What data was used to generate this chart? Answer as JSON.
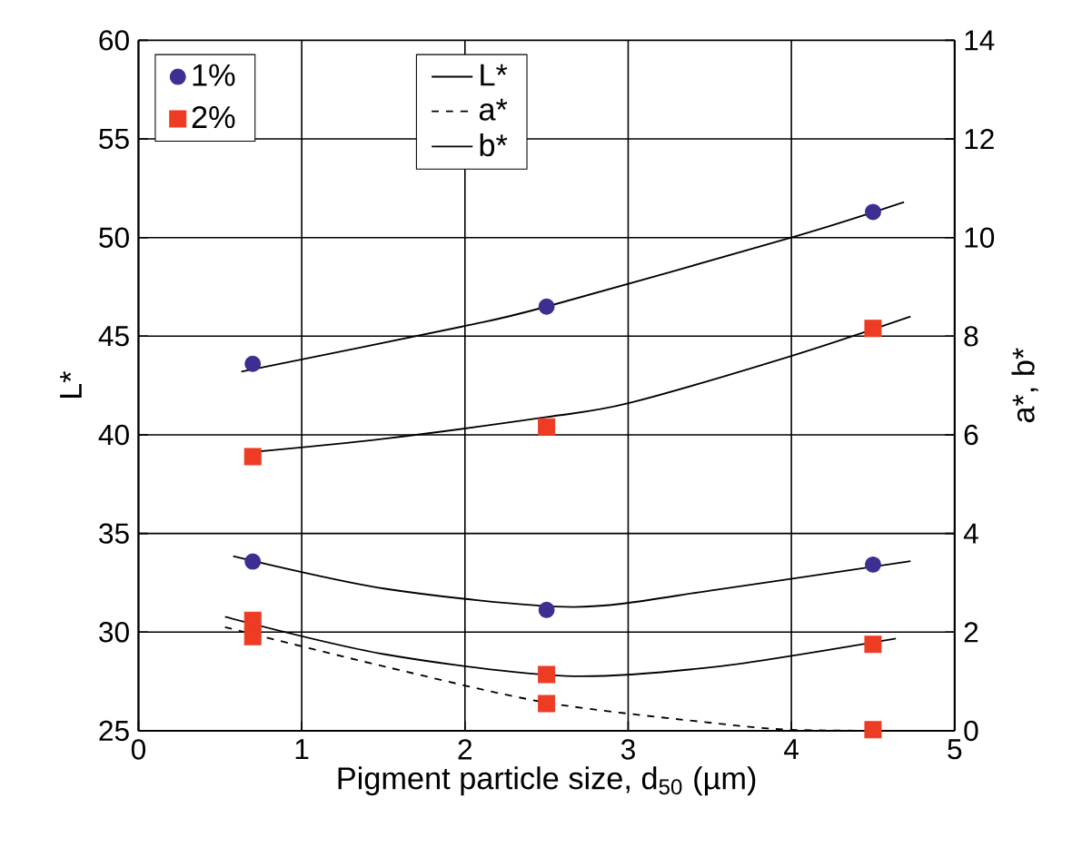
{
  "chart_data": {
    "type": "scatter",
    "xlabel": "Pigment particle size, d$_{50}$ (µm)",
    "ylabel": "L*",
    "y2label": "a*, b*",
    "xlim": [
      0,
      5
    ],
    "xticks": [
      0,
      1,
      2,
      3,
      4,
      5
    ],
    "ylim": [
      25,
      60
    ],
    "yticks": [
      25,
      30,
      35,
      40,
      45,
      50,
      55,
      60
    ],
    "y2lim": [
      0,
      14
    ],
    "y2ticks": [
      0,
      2,
      4,
      6,
      8,
      10,
      12,
      14
    ],
    "grid": true,
    "legend": "top left",
    "series": [
      {
        "name": "1%",
        "marker": "circle",
        "color": "#3b2f91",
        "x": [
          0.7,
          2.5,
          4.5
        ],
        "values": [
          43.6,
          46.5,
          51.3
        ]
      },
      {
        "name": "2%",
        "marker": "square",
        "color": "#ee3b24",
        "x": [
          0.7,
          2.5,
          4.5
        ],
        "values": [
          38.9,
          40.4,
          45.4
        ]
      },
      {
        "marker": "circle",
        "color": "#3b2f91",
        "axis": "y2",
        "x": [
          0.7,
          2.5,
          4.5
        ],
        "values": [
          3.43,
          2.45,
          3.37
        ]
      },
      {
        "marker": "square",
        "color": "#ee3b24",
        "axis": "y2",
        "x": [
          0.7,
          2.5,
          4.5
        ],
        "values": [
          2.24,
          1.14,
          1.75
        ]
      },
      {
        "marker": "square",
        "color": "#ee3b24",
        "axis": "y2",
        "x": [
          0.7,
          2.5,
          4.5
        ],
        "values": [
          1.91,
          0.55,
          0.02
        ]
      },
      {
        "name": "L*",
        "type": "line",
        "line_style": "solid",
        "color": "#000000",
        "x": [
          0.63,
          1.99,
          2.5,
          4.0,
          4.69
        ],
        "values": [
          43.2,
          45.5,
          46.5,
          50.0,
          51.8
        ]
      },
      {
        "type": "line",
        "line_style": "solid",
        "color": "#000000",
        "x": [
          0.66,
          1.5,
          2.5,
          3.0,
          4.0,
          4.73
        ],
        "values": [
          39.1,
          39.8,
          40.9,
          41.6,
          44.0,
          46.0
        ]
      },
      {
        "name": "a*",
        "type": "line",
        "line_style": "dashed",
        "color": "#000000",
        "axis": "y2",
        "x": [
          0.53,
          1.51,
          2.5,
          3.54,
          4.0,
          4.65
        ],
        "values": [
          2.1,
          1.3,
          0.57,
          0.15,
          0.02,
          0.0
        ]
      },
      {
        "name": "b*",
        "type": "line",
        "line_style": "solid",
        "color": "#000000",
        "axis": "y2",
        "x": [
          0.58,
          1.51,
          2.66,
          3.54,
          4.73
        ],
        "values": [
          3.54,
          2.88,
          2.51,
          2.86,
          3.44
        ]
      },
      {
        "type": "line",
        "line_style": "solid",
        "color": "#000000",
        "axis": "y2",
        "x": [
          0.53,
          1.51,
          2.62,
          3.54,
          4.64
        ],
        "values": [
          2.31,
          1.55,
          1.11,
          1.3,
          1.87
        ]
      }
    ]
  }
}
